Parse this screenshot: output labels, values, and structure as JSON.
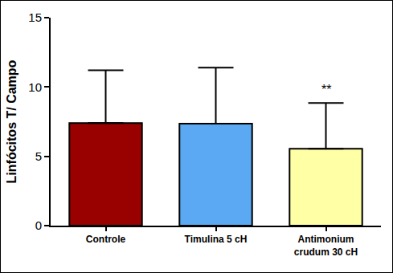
{
  "chart_data": {
    "type": "bar",
    "y_label": "Linfócitos T/ Campo",
    "categories": [
      "Controle",
      "Timulina 5 cH",
      "Antimonium\ncrudum 30 cH"
    ],
    "values": [
      7.4,
      7.35,
      5.55
    ],
    "errors": [
      3.8,
      4.05,
      3.3
    ],
    "colors": [
      "#990000",
      "#5aa9f2",
      "#ffffa6"
    ],
    "ylim": [
      0,
      15
    ],
    "yticks": [
      0,
      5,
      10,
      15
    ],
    "grid": false,
    "annotations": [
      {
        "text": "**",
        "category": "Antimonium\ncrudum 30 cH"
      }
    ]
  }
}
